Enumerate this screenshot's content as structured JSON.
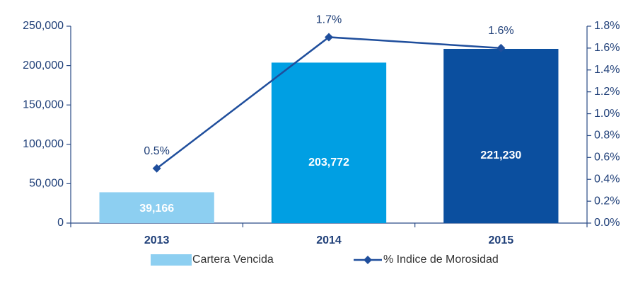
{
  "chart_data": {
    "type": "bar_line",
    "categories": [
      "2013",
      "2014",
      "2015"
    ],
    "series": [
      {
        "name": "Cartera Vencida",
        "type": "bar",
        "color": "#8dcff1",
        "colors": [
          "#8dcff1",
          "#009fe3",
          "#0b4f9f"
        ],
        "values": [
          39166,
          203772,
          221230
        ],
        "value_labels": [
          "39,166",
          "203,772",
          "221,230"
        ]
      },
      {
        "name": "% Indice de Morosidad",
        "type": "line",
        "axis": "y2",
        "color": "#1f4e9c",
        "values": [
          0.5,
          1.7,
          1.6
        ],
        "value_labels": [
          "0.5%",
          "1.7%",
          "1.6%"
        ]
      }
    ],
    "ylim": [
      0,
      250000
    ],
    "yticks": [
      0,
      {
        "value": 50000,
        "label": "50,000"
      },
      {
        "value": 100000,
        "label": "100,000"
      },
      {
        "value": 150000,
        "label": "150,000"
      },
      {
        "value": 200000,
        "label": "200,000"
      },
      {
        "value": 250000,
        "label": "250,000"
      }
    ],
    "y2lim": [
      0,
      1.8
    ],
    "y2ticks": [
      {
        "value": 0,
        "label": "0.0%"
      },
      {
        "value": 0.2,
        "label": "0.2%"
      },
      {
        "value": 0.4,
        "label": "0.4%"
      },
      {
        "value": 0.6,
        "label": "0.6%"
      },
      {
        "value": 0.8,
        "label": "0.8%"
      },
      {
        "value": 1.0,
        "label": "1.0%"
      },
      {
        "value": 1.2,
        "label": "1.2%"
      },
      {
        "value": 1.4,
        "label": "1.4%"
      },
      {
        "value": 1.6,
        "label": "1.6%"
      },
      {
        "value": 1.8,
        "label": "1.8%"
      }
    ],
    "legend": "bottom"
  }
}
